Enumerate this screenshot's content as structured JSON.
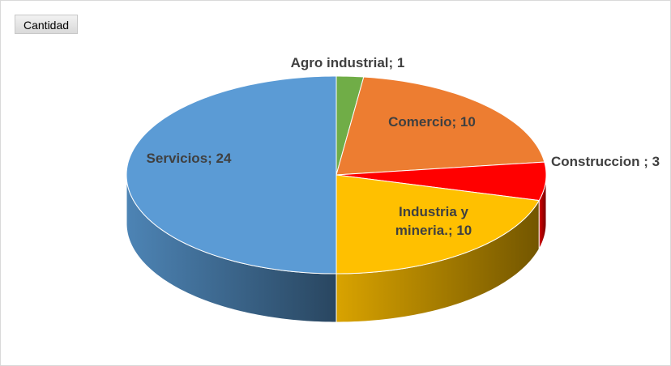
{
  "chart_data": {
    "type": "pie3d",
    "field_button": "Cantidad",
    "categories": [
      "Agro industrial; 1",
      "Comercio; 10",
      "Construccion ; 3",
      "Industria y mineria.; 10",
      "Servicios; 24"
    ],
    "values": [
      1,
      10,
      3,
      10,
      24
    ],
    "colors": [
      "#70ad47",
      "#ed7d31",
      "#ff0000",
      "#ffc000",
      "#5b9bd5"
    ]
  }
}
